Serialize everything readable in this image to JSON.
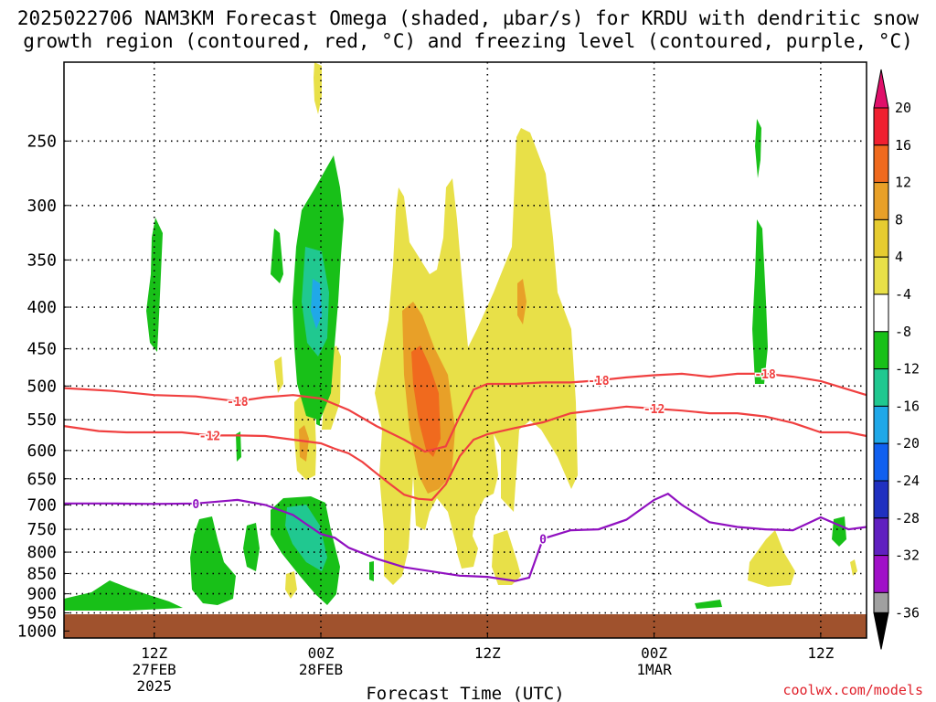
{
  "title_line1": "2025022706 NAM3KM Forecast Omega (shaded, µbar/s) for KRDU with dendritic snow",
  "title_line2": "growth region (contoured, red, °C) and freezing level (contoured, purple, °C)",
  "credit": "coolwx.com/models",
  "chart_data": {
    "type": "heatmap",
    "xlabel": "Forecast Time (UTC)",
    "ylabel": "",
    "x_range_hours": [
      -18.5,
      39.3
    ],
    "y_range_hpa": [
      200,
      1020
    ],
    "y_ticks": [
      250,
      300,
      350,
      400,
      450,
      500,
      550,
      600,
      650,
      700,
      750,
      800,
      850,
      900,
      950,
      1000
    ],
    "x_ticks": [
      {
        "hour": -12,
        "label": "12Z",
        "sub1": "27FEB",
        "sub2": "2025"
      },
      {
        "hour": 0,
        "label": "00Z",
        "sub1": "28FEB",
        "sub2": ""
      },
      {
        "hour": 12,
        "label": "12Z",
        "sub1": "",
        "sub2": ""
      },
      {
        "hour": 24,
        "label": "00Z",
        "sub1": "1MAR",
        "sub2": ""
      },
      {
        "hour": 36,
        "label": "12Z",
        "sub1": "",
        "sub2": ""
      }
    ],
    "colorbar": {
      "labels": [
        "20",
        "16",
        "12",
        "8",
        "4",
        "-4",
        "-8",
        "-12",
        "-16",
        "-20",
        "-24",
        "-28",
        "-32",
        "-36"
      ],
      "colors": [
        "#f02030",
        "#f06a1e",
        "#e8a028",
        "#e6cc30",
        "#e8e048",
        "#ffffff",
        "#18c018",
        "#20c890",
        "#20a8e8",
        "#1060f0",
        "#2030c0",
        "#6020c0",
        "#a010c8",
        "#a0a0a0"
      ],
      "top_color": "#e0106a",
      "bottom_color": "#000000"
    },
    "series": [
      {
        "name": "-18",
        "color": "#f04040",
        "x": [
          -18.5,
          -15,
          -12,
          -9,
          -6,
          -4,
          -2,
          0,
          2,
          4,
          6,
          7.5,
          9,
          10,
          11,
          12,
          14,
          16,
          18,
          20,
          22,
          24,
          26,
          28,
          30,
          32,
          34,
          36,
          38,
          39.3
        ],
        "y": [
          503,
          507,
          513,
          515,
          522,
          516,
          513,
          518,
          535,
          560,
          582,
          602,
          593,
          545,
          505,
          497,
          497,
          495,
          495,
          492,
          488,
          485,
          483,
          487,
          483,
          483,
          487,
          493,
          505,
          513
        ]
      },
      {
        "name": "-12",
        "color": "#f04040",
        "x": [
          -18.5,
          -16,
          -14,
          -12,
          -10,
          -8,
          -6,
          -4,
          -2,
          0,
          1,
          2,
          3,
          4,
          5,
          6,
          7,
          8,
          9,
          10,
          11,
          12,
          14,
          16,
          18,
          20,
          22,
          24,
          26,
          28,
          30,
          32,
          34,
          36,
          38,
          39.3
        ],
        "y": [
          560,
          568,
          570,
          570,
          570,
          575,
          575,
          576,
          582,
          588,
          597,
          605,
          620,
          640,
          660,
          680,
          688,
          690,
          660,
          610,
          582,
          573,
          563,
          554,
          540,
          535,
          530,
          533,
          536,
          540,
          540,
          545,
          555,
          570,
          570,
          576
        ]
      },
      {
        "name": "0",
        "color": "#9010c0",
        "x": [
          -18.5,
          -15,
          -12,
          -9,
          -6,
          -4,
          -2,
          -1,
          0,
          1,
          2,
          4,
          6,
          8,
          10,
          12,
          14,
          15,
          16,
          18,
          20,
          22,
          24,
          25,
          26,
          28,
          30,
          32,
          34,
          36,
          38,
          39.3
        ],
        "y": [
          697,
          697,
          698,
          697,
          690,
          700,
          720,
          740,
          760,
          768,
          790,
          815,
          835,
          845,
          855,
          858,
          868,
          860,
          770,
          752,
          750,
          730,
          690,
          678,
          700,
          735,
          745,
          750,
          752,
          725,
          750,
          745
        ]
      }
    ]
  }
}
